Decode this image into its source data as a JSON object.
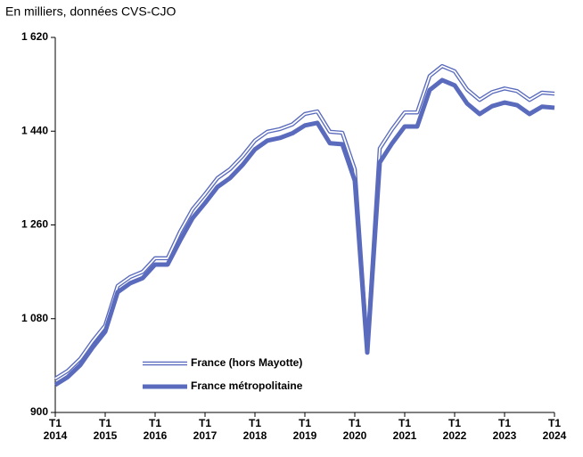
{
  "chart_data": {
    "type": "line",
    "title": "En milliers, données CVS-CJO",
    "categories": [
      "T1 2014",
      null,
      null,
      null,
      "T1 2015",
      null,
      null,
      null,
      "T1 2016",
      null,
      null,
      null,
      "T1 2017",
      null,
      null,
      null,
      "T1 2018",
      null,
      null,
      null,
      "T1 2019",
      null,
      null,
      null,
      "T1 2020",
      null,
      null,
      null,
      "T1 2021",
      null,
      null,
      null,
      "T1 2022",
      null,
      null,
      null,
      "T1 2023",
      null,
      null,
      null,
      "T1 2024"
    ],
    "series": [
      {
        "name": "France (hors Mayotte)",
        "color": "#5a6bbd",
        "style": "double",
        "values": [
          965,
          980,
          1003,
          1037,
          1067,
          1143,
          1160,
          1170,
          1196,
          1196,
          1247,
          1290,
          1319,
          1350,
          1367,
          1392,
          1422,
          1439,
          1444,
          1453,
          1473,
          1478,
          1439,
          1437,
          1367,
          1020,
          1407,
          1444,
          1476,
          1476,
          1546,
          1565,
          1555,
          1520,
          1500,
          1515,
          1522,
          1517,
          1500,
          1514,
          1512
        ]
      },
      {
        "name": "France métropolitaine",
        "color": "#5a6bbd",
        "style": "solid",
        "values": [
          953,
          968,
          991,
          1025,
          1055,
          1131,
          1148,
          1158,
          1184,
          1184,
          1230,
          1273,
          1302,
          1333,
          1350,
          1375,
          1405,
          1422,
          1427,
          1436,
          1451,
          1456,
          1417,
          1415,
          1345,
          1015,
          1380,
          1417,
          1449,
          1449,
          1519,
          1538,
          1528,
          1493,
          1473,
          1488,
          1495,
          1490,
          1473,
          1487,
          1485
        ]
      }
    ],
    "ylim": [
      900,
      1620
    ],
    "yticks": [
      900,
      {
        "value": 1080,
        "label": "1 080"
      },
      {
        "value": 1260,
        "label": "1 260"
      },
      {
        "value": 1440,
        "label": "1 440"
      },
      {
        "value": 1620,
        "label": "1 620"
      }
    ],
    "legend": "lower-left"
  }
}
